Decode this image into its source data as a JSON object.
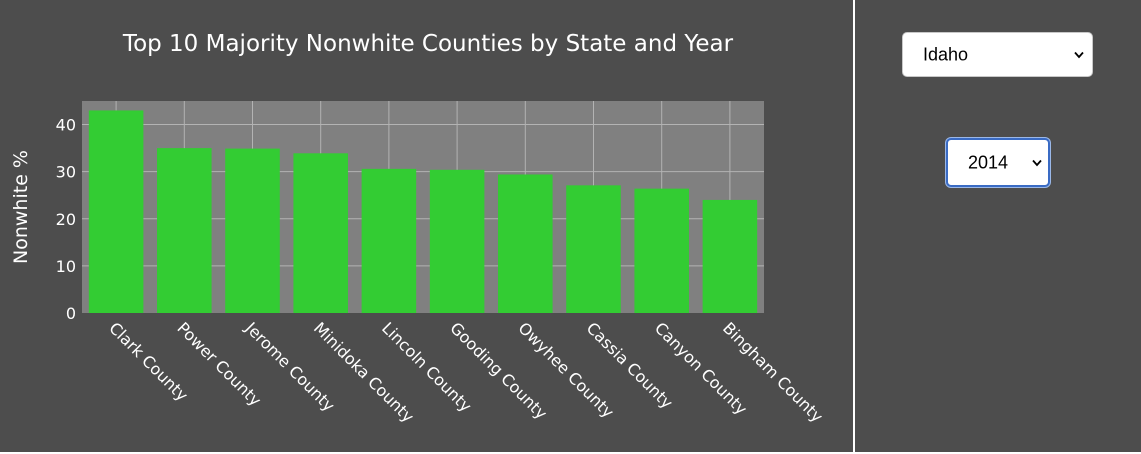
{
  "controls": {
    "state_select": {
      "value": "Idaho"
    },
    "year_select": {
      "value": "2014"
    }
  },
  "colors": {
    "page_bg": "#4d4d4d",
    "plot_bg": "#808080",
    "bar": "#33cc33",
    "grid": "#b3b3b3",
    "text": "#ffffff",
    "divider": "#ffffff"
  },
  "chart_data": {
    "type": "bar",
    "title": "Top 10 Majority Nonwhite Counties by State and Year",
    "xlabel": "",
    "ylabel": "Nonwhite %",
    "ylim": [
      0,
      45
    ],
    "yticks": [
      0,
      10,
      20,
      30,
      40
    ],
    "grid": true,
    "categories": [
      "Clark County",
      "Power County",
      "Jerome County",
      "Minidoka County",
      "Lincoln County",
      "Gooding County",
      "Owyhee County",
      "Cassia County",
      "Canyon County",
      "Bingham County"
    ],
    "values": [
      43.0,
      35.0,
      34.9,
      33.9,
      30.6,
      30.4,
      29.4,
      27.1,
      26.4,
      24.0
    ]
  }
}
